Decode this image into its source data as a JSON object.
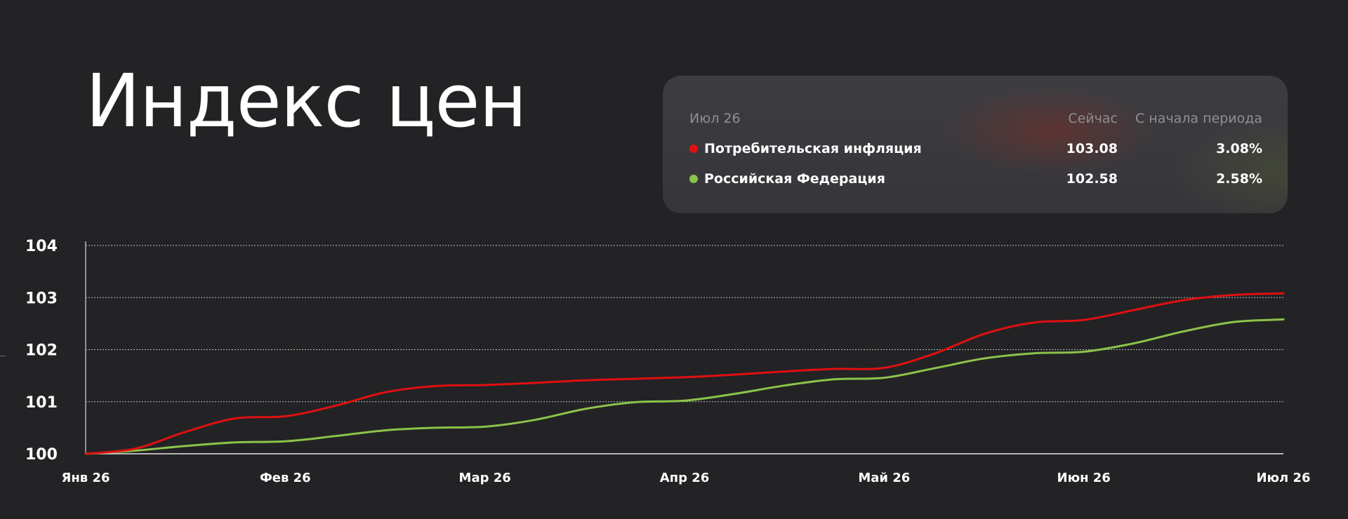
{
  "title": "Индекс цен",
  "legend": {
    "period": "Июл 26",
    "col_now": "Сейчас",
    "col_since": "С начала периода",
    "rows": [
      {
        "name": "Потребительская инфляция",
        "now": "103.08",
        "since": "3.08%",
        "color": "#e01010"
      },
      {
        "name": "Российская Федерация",
        "now": "102.58",
        "since": "2.58%",
        "color": "#8cc34a"
      }
    ]
  },
  "chart_data": {
    "type": "line",
    "title": "",
    "xlabel": "",
    "ylabel": "",
    "categories": [
      "Янв 26",
      "Фев 26",
      "Мар 26",
      "Апр 26",
      "Май 26",
      "Июн 26",
      "Июл 26"
    ],
    "x": [
      0,
      0.25,
      0.5,
      0.75,
      1,
      1.25,
      1.5,
      1.75,
      2,
      2.25,
      2.5,
      2.75,
      3,
      3.25,
      3.5,
      3.75,
      4,
      4.25,
      4.5,
      4.75,
      5,
      5.25,
      5.5,
      5.75,
      6
    ],
    "series": [
      {
        "name": "Потребительская инфляция",
        "color": "#e01010",
        "values": [
          100.0,
          100.1,
          100.42,
          100.68,
          100.72,
          100.92,
          101.18,
          101.3,
          101.32,
          101.36,
          101.41,
          101.44,
          101.47,
          101.52,
          101.58,
          101.63,
          101.65,
          101.92,
          102.3,
          102.52,
          102.57,
          102.76,
          102.95,
          103.05,
          103.08
        ]
      },
      {
        "name": "Российская Федерация",
        "color": "#8cc34a",
        "values": [
          100.0,
          100.06,
          100.15,
          100.22,
          100.24,
          100.34,
          100.45,
          100.5,
          100.52,
          100.65,
          100.86,
          100.99,
          101.02,
          101.15,
          101.31,
          101.43,
          101.46,
          101.64,
          101.83,
          101.93,
          101.96,
          102.12,
          102.35,
          102.53,
          102.58
        ]
      }
    ],
    "yticks": [
      100,
      101,
      102,
      103,
      104
    ],
    "ylim": [
      100,
      104
    ],
    "grid": true,
    "legend": "top-right"
  }
}
